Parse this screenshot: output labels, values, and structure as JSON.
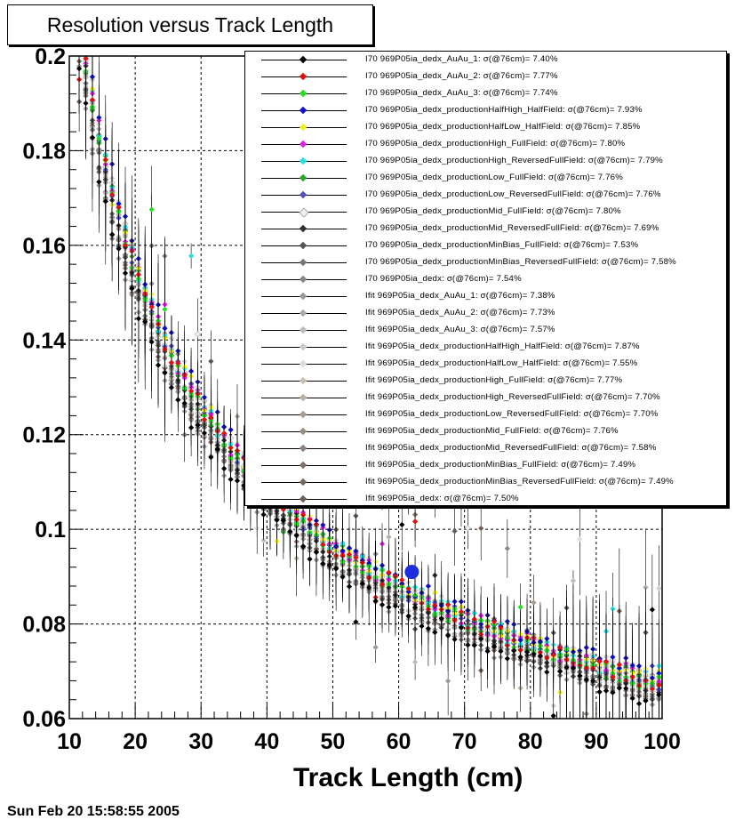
{
  "chart_data": {
    "type": "scatter",
    "title": "Resolution versus Track Length",
    "xlabel": "Track Length (cm)",
    "ylabel": "",
    "xlim": [
      10,
      100
    ],
    "ylim": [
      0.06,
      0.2
    ],
    "x_ticks": [
      "10",
      "20",
      "30",
      "40",
      "50",
      "60",
      "70",
      "80",
      "90",
      "100"
    ],
    "y_ticks": [
      "0.06",
      "0.08",
      "0.1",
      "0.12",
      "0.14",
      "0.16",
      "0.18",
      "0.2"
    ],
    "grid": true,
    "legend_position": "top-right",
    "highlight_point": {
      "x": 62,
      "y": 0.091,
      "color": "#1f2de0"
    },
    "series": [
      {
        "name": "I70   969P05ia_dedx_AuAu_1:  σ(@76cm)= 7.40%",
        "color": "#000000",
        "sigma76": 0.074
      },
      {
        "name": "I70   969P05ia_dedx_AuAu_2:  σ(@76cm)= 7.77%",
        "color": "#e01010",
        "sigma76": 0.0777
      },
      {
        "name": "I70   969P05ia_dedx_AuAu_3:  σ(@76cm)= 7.74%",
        "color": "#22dd22",
        "sigma76": 0.0774
      },
      {
        "name": "I70   969P05ia_dedx_productionHalfHigh_HalfField:  σ(@76cm)= 7.93%",
        "color": "#1010c8",
        "sigma76": 0.0793
      },
      {
        "name": "I70   969P05ia_dedx_productionHalfLow_HalfField:  σ(@76cm)= 7.85%",
        "color": "#f0f020",
        "sigma76": 0.0785
      },
      {
        "name": "I70   969P05ia_dedx_productionHigh_FullField:  σ(@76cm)= 7.80%",
        "color": "#e020e0",
        "sigma76": 0.078
      },
      {
        "name": "I70   969P05ia_dedx_productionHigh_ReversedFullField:   σ(@76cm)= 7.79%",
        "color": "#20e0e0",
        "sigma76": 0.0779
      },
      {
        "name": "I70   969P05ia_dedx_productionLow_FullField:  σ(@76cm)= 7.76%",
        "color": "#30a030",
        "sigma76": 0.0776
      },
      {
        "name": "I70   969P05ia_dedx_productionLow_ReversedFullField:   σ(@76cm)= 7.76%",
        "color": "#5050c0",
        "sigma76": 0.0776
      },
      {
        "name": "I70   969P05ia_dedx_productionMid_FullField:  σ(@76cm)= 7.80%",
        "color": "#f0f0f0",
        "sigma76": 0.078
      },
      {
        "name": "I70   969P05ia_dedx_productionMid_ReversedFullField:  σ(@76cm)= 7.69%",
        "color": "#303030",
        "sigma76": 0.0769
      },
      {
        "name": "I70   969P05ia_dedx_productionMinBias_FullField:  σ(@76cm)= 7.53%",
        "color": "#555555",
        "sigma76": 0.0753
      },
      {
        "name": "I70   969P05ia_dedx_productionMinBias_ReversedFullField:   σ(@76cm)= 7.58%",
        "color": "#777777",
        "sigma76": 0.0758
      },
      {
        "name": "I70   969P05ia_dedx:  σ(@76cm)= 7.54%",
        "color": "#888888",
        "sigma76": 0.0754
      },
      {
        "name": "Ifit  969P05ia_dedx_AuAu_1:  σ(@76cm)= 7.38%",
        "color": "#999999",
        "sigma76": 0.0738
      },
      {
        "name": "Ifit  969P05ia_dedx_AuAu_2:  σ(@76cm)= 7.73%",
        "color": "#aaaaaa",
        "sigma76": 0.0773
      },
      {
        "name": "Ifit  969P05ia_dedx_AuAu_3:  σ(@76cm)= 7.57%",
        "color": "#bbbbbb",
        "sigma76": 0.0757
      },
      {
        "name": "Ifit  969P05ia_dedx_productionHalfHigh_HalfField:  σ(@76cm)= 7.87%",
        "color": "#cccccc",
        "sigma76": 0.0787
      },
      {
        "name": "Ifit  969P05ia_dedx_productionHalfLow_HalfField:  σ(@76cm)= 7.55%",
        "color": "#dddddd",
        "sigma76": 0.0755
      },
      {
        "name": "Ifit  969P05ia_dedx_productionHigh_FullField:  σ(@76cm)= 7.77%",
        "color": "#c8c0b0",
        "sigma76": 0.0777
      },
      {
        "name": "Ifit  969P05ia_dedx_productionHigh_ReversedFullField:   σ(@76cm)= 7.70%",
        "color": "#b8b0a0",
        "sigma76": 0.077
      },
      {
        "name": "Ifit  969P05ia_dedx_productionLow_ReversedFullField:   σ(@76cm)= 7.70%",
        "color": "#a89c90",
        "sigma76": 0.077
      },
      {
        "name": "Ifit  969P05ia_dedx_productionMid_FullField:  σ(@76cm)= 7.76%",
        "color": "#988c80",
        "sigma76": 0.0776
      },
      {
        "name": "Ifit  969P05ia_dedx_productionMid_ReversedFullField:  σ(@76cm)= 7.58%",
        "color": "#8c8078",
        "sigma76": 0.0758
      },
      {
        "name": "Ifit  969P05ia_dedx_productionMinBias_FullField:  σ(@76cm)= 7.49%",
        "color": "#807068",
        "sigma76": 0.0749
      },
      {
        "name": "Ifit  969P05ia_dedx_productionMinBias_ReversedFullField:  σ(@76cm)= 7.49%",
        "color": "#786860",
        "sigma76": 0.0749
      },
      {
        "name": "Ifit  969P05ia_dedx:  σ(@76cm)= 7.50%",
        "color": "#6e5e56",
        "sigma76": 0.075
      }
    ]
  },
  "footer": {
    "timestamp": "Sun Feb 20 15:58:55 2005"
  }
}
